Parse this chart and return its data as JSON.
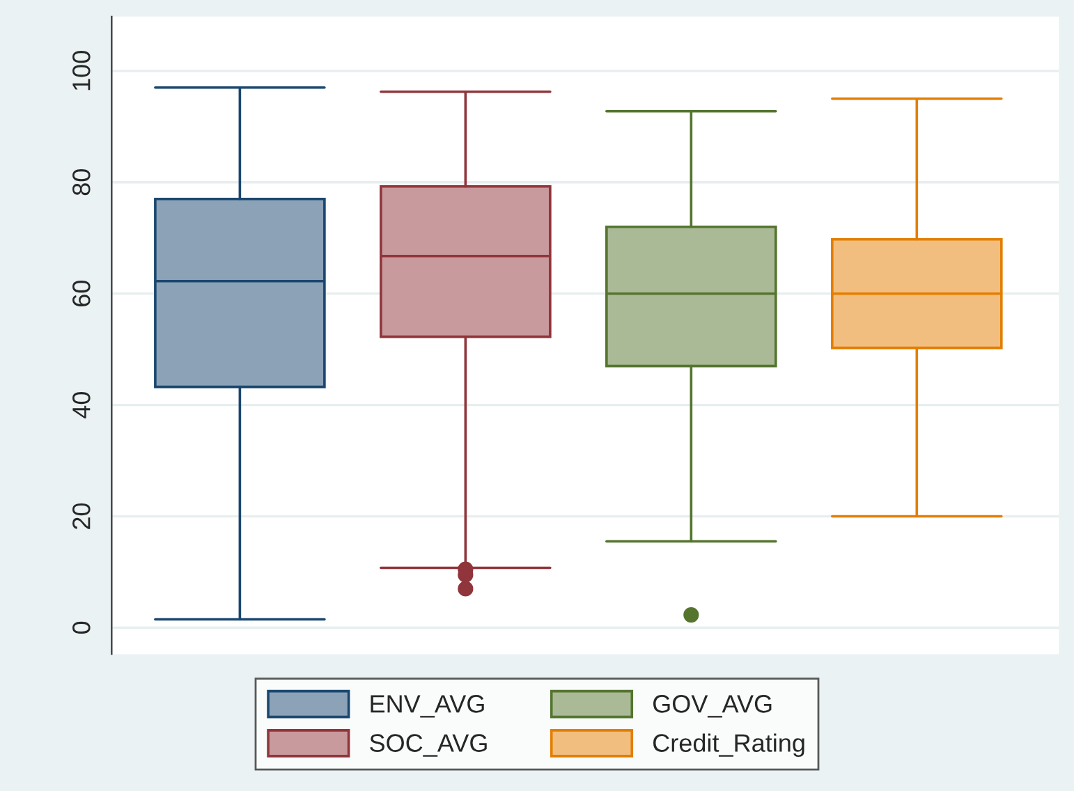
{
  "chart_data": {
    "type": "box",
    "categories": [
      null
    ],
    "series": [
      {
        "name": "ENV_AVG",
        "color": "#1a476f",
        "boxes": [
          {
            "low": 1.5,
            "q1": 43.25,
            "median": 62.25,
            "q3": 77,
            "high": 97
          }
        ]
      },
      {
        "name": "SOC_AVG",
        "color": "#90353b",
        "boxes": [
          {
            "low": 10.75,
            "q1": 52.25,
            "median": 66.75,
            "q3": 79.25,
            "high": 96.25,
            "outliers": [
              10.5,
              9.5,
              7
            ]
          }
        ]
      },
      {
        "name": "GOV_AVG",
        "color": "#55752f",
        "boxes": [
          {
            "low": 15.5,
            "q1": 47,
            "median": 60,
            "q3": 72,
            "high": 92.75,
            "outliers": [
              2.3
            ]
          }
        ]
      },
      {
        "name": "Credit_Rating",
        "color": "#e37e00",
        "boxes": [
          {
            "low": 20,
            "q1": 50.25,
            "median": 60,
            "q3": 69.75,
            "high": 95
          }
        ]
      }
    ],
    "ylim": [
      -4.75,
      109.75
    ],
    "yticks": [
      0,
      20,
      40,
      60,
      80,
      100
    ],
    "grid": "y",
    "legend": "bottom",
    "tick_labels": "y"
  }
}
